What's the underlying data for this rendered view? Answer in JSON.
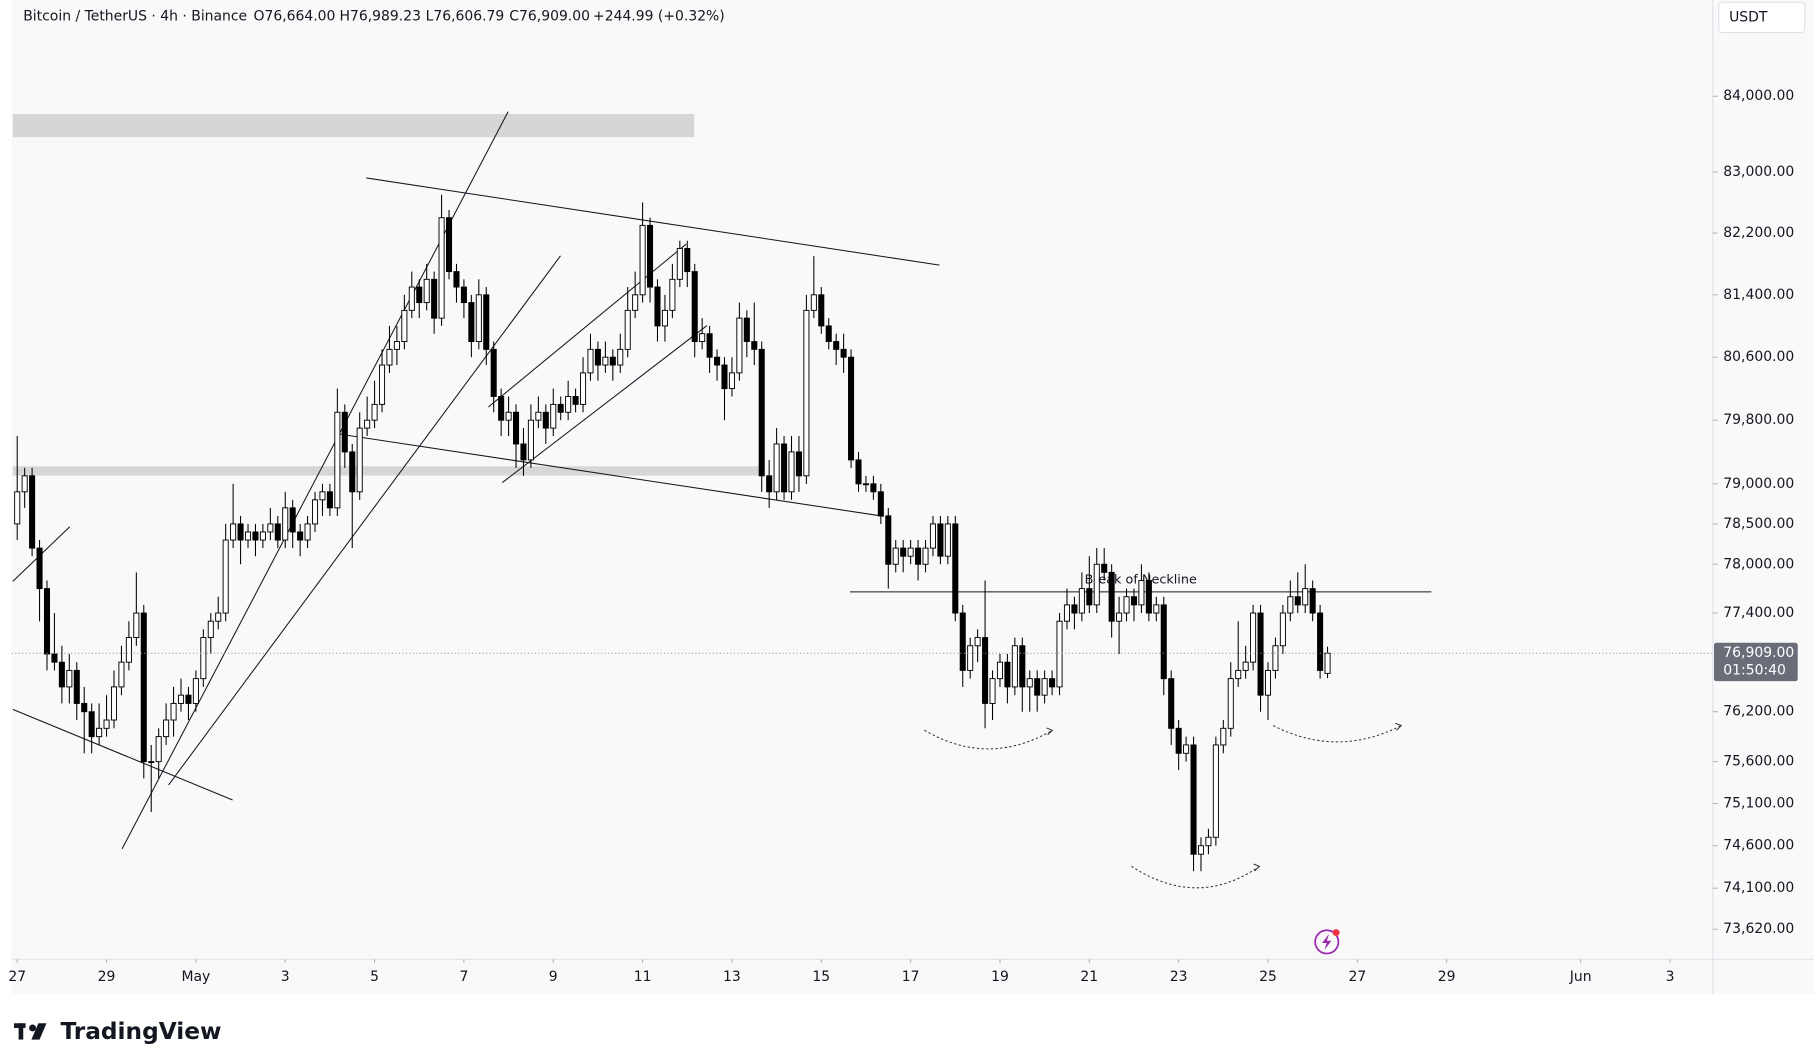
{
  "chart_data": {
    "type": "candlestick",
    "title": "Bitcoin / TetherUS · 4h · Binance",
    "header_values": [
      "O76,664.00",
      "H76,989.23",
      "L76,606.79",
      "C76,909.00",
      "+244.99 (+0.32%)"
    ],
    "currency": "USDT",
    "annotation": "Break of Neckline",
    "brand": "TradingView",
    "log_scale": true,
    "grid": false,
    "up_color": "#ffffff",
    "down_color": "#000000",
    "ylim": [
      73270,
      85290
    ],
    "yticks": [
      {
        "value": 84000,
        "label": "84,000.00"
      },
      {
        "value": 83000,
        "label": "83,000.00"
      },
      {
        "value": 82200,
        "label": "82,200.00"
      },
      {
        "value": 81400,
        "label": "81,400.00"
      },
      {
        "value": 80600,
        "label": "80,600.00"
      },
      {
        "value": 79800,
        "label": "79,800.00"
      },
      {
        "value": 79000,
        "label": "79,000.00"
      },
      {
        "value": 78500,
        "label": "78,500.00"
      },
      {
        "value": 78000,
        "label": "78,000.00"
      },
      {
        "value": 77400,
        "label": "77,400.00"
      },
      {
        "value": 76200,
        "label": "76,200.00"
      },
      {
        "value": 75600,
        "label": "75,600.00"
      },
      {
        "value": 75100,
        "label": "75,100.00"
      },
      {
        "value": 74600,
        "label": "74,600.00"
      },
      {
        "value": 74100,
        "label": "74,100.00"
      },
      {
        "value": 73620,
        "label": "73,620.00"
      }
    ],
    "last_price": {
      "value": 76909,
      "label": "76,909.00"
    },
    "countdown": "01:50:40",
    "xlim": [
      -3,
      911
    ],
    "xticks": [
      {
        "value": 0,
        "label": "27"
      },
      {
        "value": 48,
        "label": "29"
      },
      {
        "value": 96,
        "label": "May"
      },
      {
        "value": 144,
        "label": "3"
      },
      {
        "value": 192,
        "label": "5"
      },
      {
        "value": 240,
        "label": "7"
      },
      {
        "value": 288,
        "label": "9"
      },
      {
        "value": 336,
        "label": "11"
      },
      {
        "value": 384,
        "label": "13"
      },
      {
        "value": 432,
        "label": "15"
      },
      {
        "value": 480,
        "label": "17"
      },
      {
        "value": 528,
        "label": "19"
      },
      {
        "value": 576,
        "label": "21"
      },
      {
        "value": 624,
        "label": "23"
      },
      {
        "value": 672,
        "label": "25"
      },
      {
        "value": 720,
        "label": "27"
      },
      {
        "value": 768,
        "label": "29"
      },
      {
        "value": 840,
        "label": "Jun"
      },
      {
        "value": 888,
        "label": "3"
      }
    ],
    "x": [
      0,
      4,
      8,
      12,
      16,
      20,
      24,
      28,
      32,
      36,
      40,
      44,
      48,
      52,
      56,
      60,
      64,
      68,
      72,
      76,
      80,
      84,
      88,
      92,
      96,
      100,
      104,
      108,
      112,
      116,
      120,
      124,
      128,
      132,
      136,
      140,
      144,
      148,
      152,
      156,
      160,
      164,
      168,
      172,
      176,
      180,
      184,
      188,
      192,
      196,
      200,
      204,
      208,
      212,
      216,
      220,
      224,
      228,
      232,
      236,
      240,
      244,
      248,
      252,
      256,
      260,
      264,
      268,
      272,
      276,
      280,
      284,
      288,
      292,
      296,
      300,
      304,
      308,
      312,
      316,
      320,
      324,
      328,
      332,
      336,
      340,
      344,
      348,
      352,
      356,
      360,
      364,
      368,
      372,
      376,
      380,
      384,
      388,
      392,
      396,
      400,
      404,
      408,
      412,
      416,
      420,
      424,
      428,
      432,
      436,
      440,
      444,
      448,
      452,
      456,
      460,
      464,
      468,
      472,
      476,
      480,
      484,
      488,
      492,
      496,
      500,
      504,
      508,
      512,
      516,
      520,
      524,
      528,
      532,
      536,
      540,
      544,
      548,
      552,
      556,
      560,
      564,
      568,
      572,
      576,
      580,
      584,
      588,
      592,
      596,
      600,
      604,
      608,
      612,
      616,
      620,
      624,
      628,
      632,
      636,
      640,
      644,
      648,
      652,
      656,
      660,
      664,
      668,
      672,
      676,
      680,
      684,
      688,
      692,
      696,
      700,
      704
    ],
    "ohlc": [
      [
        78500,
        79600,
        78300,
        78900
      ],
      [
        78900,
        79200,
        78700,
        79100
      ],
      [
        79100,
        79200,
        78100,
        78200
      ],
      [
        78200,
        78300,
        77300,
        77700
      ],
      [
        77700,
        77800,
        76700,
        76900
      ],
      [
        76900,
        77400,
        76700,
        76800
      ],
      [
        76800,
        77000,
        76300,
        76500
      ],
      [
        76500,
        76900,
        76300,
        76700
      ],
      [
        76700,
        76800,
        76100,
        76300
      ],
      [
        76300,
        76500,
        75700,
        76200
      ],
      [
        76200,
        76300,
        75700,
        75900
      ],
      [
        75900,
        76300,
        75800,
        76000
      ],
      [
        76000,
        76400,
        75900,
        76100
      ],
      [
        76100,
        76700,
        76000,
        76500
      ],
      [
        76500,
        77000,
        76400,
        76800
      ],
      [
        76800,
        77300,
        76700,
        77100
      ],
      [
        77100,
        77900,
        77000,
        77400
      ],
      [
        77400,
        77500,
        75400,
        75600
      ],
      [
        75600,
        75800,
        75000,
        75600
      ],
      [
        75600,
        76000,
        75400,
        75900
      ],
      [
        75900,
        76300,
        75800,
        76100
      ],
      [
        76100,
        76500,
        75900,
        76300
      ],
      [
        76300,
        76600,
        76200,
        76400
      ],
      [
        76400,
        76500,
        76100,
        76300
      ],
      [
        76300,
        76700,
        76200,
        76600
      ],
      [
        76600,
        77200,
        76500,
        77100
      ],
      [
        77100,
        77400,
        76900,
        77300
      ],
      [
        77300,
        77600,
        77200,
        77400
      ],
      [
        77400,
        78500,
        77300,
        78300
      ],
      [
        78300,
        79000,
        78200,
        78500
      ],
      [
        78500,
        78600,
        78000,
        78300
      ],
      [
        78300,
        78500,
        78200,
        78400
      ],
      [
        78400,
        78500,
        78100,
        78300
      ],
      [
        78300,
        78500,
        78200,
        78400
      ],
      [
        78400,
        78700,
        78300,
        78500
      ],
      [
        78500,
        78600,
        78200,
        78300
      ],
      [
        78300,
        78900,
        78200,
        78700
      ],
      [
        78700,
        78800,
        78200,
        78400
      ],
      [
        78400,
        78500,
        78100,
        78300
      ],
      [
        78300,
        78600,
        78200,
        78500
      ],
      [
        78500,
        78900,
        78400,
        78800
      ],
      [
        78800,
        79000,
        78600,
        78900
      ],
      [
        78900,
        79000,
        78600,
        78700
      ],
      [
        78700,
        80200,
        78600,
        79900
      ],
      [
        79900,
        80000,
        79200,
        79400
      ],
      [
        79400,
        79500,
        78200,
        78900
      ],
      [
        78900,
        79900,
        78800,
        79700
      ],
      [
        79700,
        80100,
        79600,
        79800
      ],
      [
        79800,
        80300,
        79700,
        80000
      ],
      [
        80000,
        80700,
        79900,
        80500
      ],
      [
        80500,
        81000,
        80400,
        80700
      ],
      [
        80700,
        81000,
        80500,
        80800
      ],
      [
        80800,
        81400,
        80700,
        81200
      ],
      [
        81200,
        81700,
        81100,
        81500
      ],
      [
        81500,
        81600,
        81100,
        81300
      ],
      [
        81300,
        81800,
        81200,
        81600
      ],
      [
        81600,
        81700,
        80900,
        81100
      ],
      [
        81100,
        82700,
        81000,
        82400
      ],
      [
        82400,
        82500,
        81600,
        81700
      ],
      [
        81700,
        81800,
        81300,
        81500
      ],
      [
        81500,
        81600,
        81100,
        81300
      ],
      [
        81300,
        81400,
        80600,
        80800
      ],
      [
        80800,
        81600,
        80700,
        81400
      ],
      [
        81400,
        81500,
        80500,
        80700
      ],
      [
        80700,
        80800,
        79900,
        80100
      ],
      [
        80100,
        80200,
        79600,
        79800
      ],
      [
        79800,
        80100,
        79600,
        79900
      ],
      [
        79900,
        80000,
        79200,
        79500
      ],
      [
        79500,
        79700,
        79100,
        79300
      ],
      [
        79300,
        80000,
        79200,
        79800
      ],
      [
        79800,
        80100,
        79700,
        79900
      ],
      [
        79900,
        80000,
        79500,
        79700
      ],
      [
        79700,
        80200,
        79600,
        80000
      ],
      [
        80000,
        80100,
        79800,
        79900
      ],
      [
        79900,
        80300,
        79800,
        80100
      ],
      [
        80100,
        80200,
        79900,
        80000
      ],
      [
        80000,
        80600,
        79900,
        80400
      ],
      [
        80400,
        80900,
        80300,
        80700
      ],
      [
        80700,
        80800,
        80300,
        80500
      ],
      [
        80500,
        80800,
        80400,
        80600
      ],
      [
        80600,
        80700,
        80300,
        80500
      ],
      [
        80500,
        80900,
        80400,
        80700
      ],
      [
        80700,
        81500,
        80600,
        81200
      ],
      [
        81200,
        81700,
        81100,
        81400
      ],
      [
        81400,
        82600,
        81300,
        82300
      ],
      [
        82300,
        82400,
        81300,
        81500
      ],
      [
        81500,
        81600,
        80800,
        81000
      ],
      [
        81000,
        81400,
        80800,
        81200
      ],
      [
        81200,
        81800,
        81100,
        81600
      ],
      [
        81600,
        82100,
        81500,
        82000
      ],
      [
        82000,
        82100,
        81500,
        81700
      ],
      [
        81700,
        81800,
        80600,
        80800
      ],
      [
        80800,
        81100,
        80700,
        80900
      ],
      [
        80900,
        81000,
        80400,
        80600
      ],
      [
        80600,
        80700,
        80300,
        80500
      ],
      [
        80500,
        80600,
        79800,
        80200
      ],
      [
        80200,
        80600,
        80100,
        80400
      ],
      [
        80400,
        81300,
        80300,
        81100
      ],
      [
        81100,
        81200,
        80600,
        80800
      ],
      [
        80800,
        81300,
        80500,
        80700
      ],
      [
        80700,
        80800,
        78900,
        79100
      ],
      [
        79100,
        79300,
        78700,
        78900
      ],
      [
        78900,
        79700,
        78800,
        79500
      ],
      [
        79500,
        79600,
        78800,
        78900
      ],
      [
        78900,
        79600,
        78800,
        79400
      ],
      [
        79400,
        79600,
        78900,
        79100
      ],
      [
        79100,
        81400,
        79000,
        81200
      ],
      [
        81200,
        81900,
        81100,
        81400
      ],
      [
        81400,
        81500,
        80900,
        81000
      ],
      [
        81000,
        81100,
        80700,
        80800
      ],
      [
        80800,
        80900,
        80500,
        80700
      ],
      [
        80700,
        80900,
        80400,
        80600
      ],
      [
        80600,
        80700,
        79200,
        79300
      ],
      [
        79300,
        79400,
        78900,
        79000
      ],
      [
        79000,
        79100,
        78900,
        79000
      ],
      [
        79000,
        79100,
        78800,
        78900
      ],
      [
        78900,
        79000,
        78500,
        78600
      ],
      [
        78600,
        78700,
        77700,
        78000
      ],
      [
        78000,
        78300,
        77900,
        78200
      ],
      [
        78200,
        78300,
        77900,
        78100
      ],
      [
        78100,
        78300,
        78000,
        78200
      ],
      [
        78200,
        78300,
        77800,
        78000
      ],
      [
        78000,
        78300,
        77900,
        78200
      ],
      [
        78200,
        78600,
        78100,
        78500
      ],
      [
        78500,
        78600,
        78000,
        78100
      ],
      [
        78100,
        78600,
        78000,
        78500
      ],
      [
        78500,
        78600,
        77300,
        77400
      ],
      [
        77400,
        77500,
        76500,
        76700
      ],
      [
        76700,
        77100,
        76600,
        77000
      ],
      [
        77000,
        77200,
        76800,
        77100
      ],
      [
        77100,
        77800,
        76000,
        76300
      ],
      [
        76300,
        76700,
        76100,
        76600
      ],
      [
        76600,
        76900,
        76500,
        76800
      ],
      [
        76800,
        76900,
        76300,
        76500
      ],
      [
        76500,
        77100,
        76400,
        77000
      ],
      [
        77000,
        77100,
        76200,
        76500
      ],
      [
        76500,
        76700,
        76200,
        76600
      ],
      [
        76600,
        76700,
        76200,
        76400
      ],
      [
        76400,
        76700,
        76300,
        76600
      ],
      [
        76600,
        76700,
        76400,
        76500
      ],
      [
        76500,
        77400,
        76400,
        77300
      ],
      [
        77300,
        77700,
        77200,
        77500
      ],
      [
        77500,
        77600,
        77200,
        77400
      ],
      [
        77400,
        77900,
        77300,
        77700
      ],
      [
        77700,
        78100,
        77400,
        77500
      ],
      [
        77500,
        78200,
        77400,
        78000
      ],
      [
        78000,
        78200,
        77800,
        77900
      ],
      [
        77900,
        78000,
        77100,
        77300
      ],
      [
        77300,
        77600,
        76900,
        77400
      ],
      [
        77400,
        77700,
        77300,
        77600
      ],
      [
        77600,
        77700,
        77300,
        77500
      ],
      [
        77500,
        78000,
        77400,
        77800
      ],
      [
        77800,
        77900,
        77300,
        77400
      ],
      [
        77400,
        77600,
        77300,
        77500
      ],
      [
        77500,
        77600,
        76400,
        76600
      ],
      [
        76600,
        76700,
        75800,
        76000
      ],
      [
        76000,
        76100,
        75500,
        75700
      ],
      [
        75700,
        75900,
        75600,
        75800
      ],
      [
        75800,
        75900,
        74300,
        74500
      ],
      [
        74500,
        74700,
        74300,
        74600
      ],
      [
        74600,
        74800,
        74500,
        74700
      ],
      [
        74700,
        75900,
        74600,
        75800
      ],
      [
        75800,
        76100,
        75700,
        76000
      ],
      [
        76000,
        76800,
        75900,
        76600
      ],
      [
        76600,
        77300,
        76500,
        76700
      ],
      [
        76700,
        77000,
        76600,
        76800
      ],
      [
        76800,
        77500,
        76700,
        77400
      ],
      [
        77400,
        77500,
        76200,
        76400
      ],
      [
        76400,
        76800,
        76100,
        76700
      ],
      [
        76700,
        77100,
        76600,
        77000
      ],
      [
        77000,
        77500,
        76900,
        77400
      ],
      [
        77400,
        77800,
        77300,
        77600
      ],
      [
        77600,
        77900,
        77400,
        77500
      ],
      [
        77500,
        78000,
        77400,
        77700
      ],
      [
        77700,
        77800,
        77300,
        77400
      ],
      [
        77400,
        77500,
        76600,
        76700
      ],
      [
        76664,
        76989,
        76606,
        76909
      ]
    ]
  }
}
